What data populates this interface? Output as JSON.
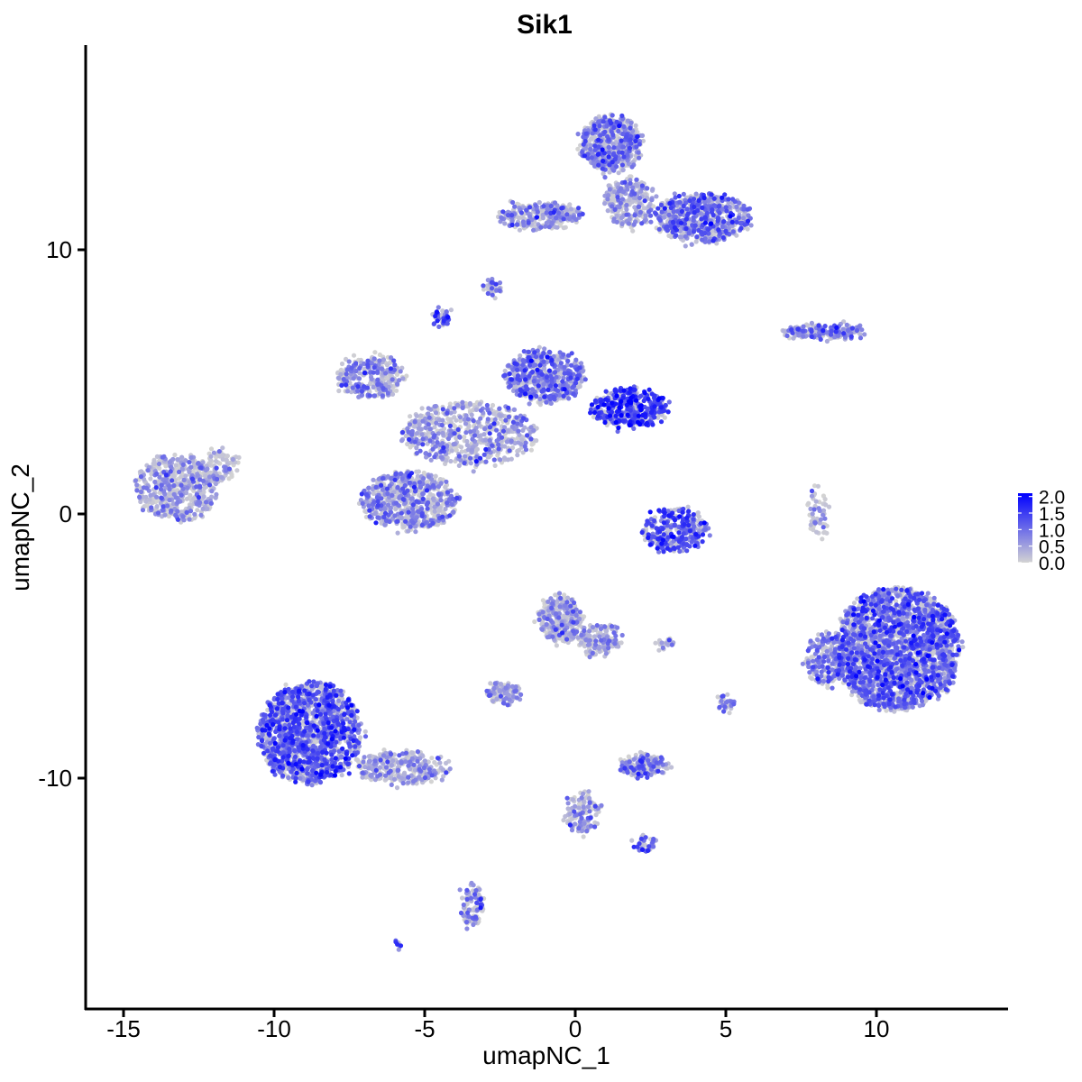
{
  "chart_data": {
    "type": "scatter",
    "title": "Sik1",
    "xlabel": "umapNC_1",
    "ylabel": "umapNC_2",
    "xlim": [
      -16.5,
      14.5
    ],
    "ylim": [
      -17.5,
      17.5
    ],
    "xticks": [
      -15,
      -10,
      -5,
      0,
      5,
      10
    ],
    "xtick_labels": [
      "-15",
      "-10",
      "-5",
      "0",
      "5",
      "10"
    ],
    "yticks": [
      -10,
      0,
      10
    ],
    "ytick_labels": [
      "-10",
      "0",
      "10"
    ],
    "grid": false,
    "legend": {
      "placement": "right",
      "type": "colorbar",
      "range": [
        0,
        2.1
      ],
      "ticks": [
        0.0,
        0.5,
        1.0,
        1.5,
        2.0
      ],
      "tick_labels": [
        "0.0",
        "0.5",
        "1.0",
        "1.5",
        "2.0"
      ],
      "color_low": "#d3d3d3",
      "color_high": "#0000ff"
    },
    "clusters": [
      {
        "name": "left-small",
        "cx": -13.2,
        "cy": 1.0,
        "rx": 1.4,
        "ry": 1.2,
        "n": 520,
        "mean_expr": 0.45
      },
      {
        "name": "left-small-tail",
        "cx": -11.8,
        "cy": 1.8,
        "rx": 0.6,
        "ry": 0.6,
        "n": 90,
        "mean_expr": 0.25
      },
      {
        "name": "center-top-blob",
        "cx": -1.0,
        "cy": 5.2,
        "rx": 1.3,
        "ry": 1.0,
        "n": 520,
        "mean_expr": 0.85
      },
      {
        "name": "center-right-blob",
        "cx": 1.8,
        "cy": 4.0,
        "rx": 1.3,
        "ry": 0.7,
        "n": 420,
        "mean_expr": 1.35
      },
      {
        "name": "center-left-arm",
        "cx": -6.8,
        "cy": 5.2,
        "rx": 1.1,
        "ry": 0.8,
        "n": 300,
        "mean_expr": 0.6
      },
      {
        "name": "center-bottom-blob",
        "cx": -5.5,
        "cy": 0.5,
        "rx": 1.6,
        "ry": 1.1,
        "n": 650,
        "mean_expr": 0.6
      },
      {
        "name": "center-core",
        "cx": -3.5,
        "cy": 3.0,
        "rx": 2.2,
        "ry": 1.2,
        "n": 600,
        "mean_expr": 0.5
      },
      {
        "name": "top-cluster-upper",
        "cx": 1.2,
        "cy": 14.0,
        "rx": 1.0,
        "ry": 1.1,
        "n": 520,
        "mean_expr": 0.7
      },
      {
        "name": "top-cluster-right",
        "cx": 4.2,
        "cy": 11.2,
        "rx": 1.6,
        "ry": 0.9,
        "n": 620,
        "mean_expr": 0.85
      },
      {
        "name": "top-cluster-left-arm",
        "cx": -1.2,
        "cy": 11.3,
        "rx": 1.4,
        "ry": 0.5,
        "n": 280,
        "mean_expr": 0.6
      },
      {
        "name": "top-cluster-neck",
        "cx": 1.8,
        "cy": 11.8,
        "rx": 0.8,
        "ry": 0.9,
        "n": 250,
        "mean_expr": 0.4
      },
      {
        "name": "small-9",
        "cx": -2.7,
        "cy": 8.6,
        "rx": 0.25,
        "ry": 0.3,
        "n": 35,
        "mean_expr": 0.9
      },
      {
        "name": "small-7",
        "cx": -4.5,
        "cy": 7.4,
        "rx": 0.3,
        "ry": 0.25,
        "n": 45,
        "mean_expr": 1.3
      },
      {
        "name": "right-streak",
        "cx": 8.3,
        "cy": 6.9,
        "rx": 1.4,
        "ry": 0.25,
        "n": 180,
        "mean_expr": 0.8
      },
      {
        "name": "horseshoe",
        "cx": 3.3,
        "cy": -0.6,
        "rx": 1.1,
        "ry": 0.8,
        "n": 300,
        "mean_expr": 1.2
      },
      {
        "name": "right-thin",
        "cx": 8.1,
        "cy": 0.0,
        "rx": 0.3,
        "ry": 1.1,
        "n": 55,
        "mean_expr": 0.5
      },
      {
        "name": "big-right",
        "cx": 10.7,
        "cy": -5.1,
        "rx": 2.1,
        "ry": 2.3,
        "n": 2200,
        "mean_expr": 1.0
      },
      {
        "name": "big-right-left-edge",
        "cx": 8.3,
        "cy": -5.5,
        "rx": 0.6,
        "ry": 1.0,
        "n": 180,
        "mean_expr": 0.8
      },
      {
        "name": "lower-left-big",
        "cx": -8.8,
        "cy": -8.3,
        "rx": 1.7,
        "ry": 1.9,
        "n": 1500,
        "mean_expr": 1.1
      },
      {
        "name": "lower-left-tail",
        "cx": -5.8,
        "cy": -9.6,
        "rx": 1.6,
        "ry": 0.6,
        "n": 300,
        "mean_expr": 0.45
      },
      {
        "name": "lower-center-upper",
        "cx": -0.5,
        "cy": -4.0,
        "rx": 0.7,
        "ry": 0.9,
        "n": 300,
        "mean_expr": 0.45
      },
      {
        "name": "lower-center-arm",
        "cx": 0.8,
        "cy": -4.8,
        "rx": 0.7,
        "ry": 0.6,
        "n": 150,
        "mean_expr": 0.4
      },
      {
        "name": "lower-center-bottom",
        "cx": -2.4,
        "cy": -6.8,
        "rx": 0.6,
        "ry": 0.35,
        "n": 120,
        "mean_expr": 0.4
      },
      {
        "name": "small-blob-9",
        "cx": 2.3,
        "cy": -9.5,
        "rx": 0.8,
        "ry": 0.4,
        "n": 150,
        "mean_expr": 0.8
      },
      {
        "name": "small-blob-5",
        "cx": 5.0,
        "cy": -7.2,
        "rx": 0.25,
        "ry": 0.3,
        "n": 30,
        "mean_expr": 0.8
      },
      {
        "name": "small-blob-3",
        "cx": 3.0,
        "cy": -4.9,
        "rx": 0.3,
        "ry": 0.12,
        "n": 22,
        "mean_expr": 0.6
      },
      {
        "name": "branch-bottom",
        "cx": 0.2,
        "cy": -11.3,
        "rx": 0.6,
        "ry": 0.8,
        "n": 120,
        "mean_expr": 0.6
      },
      {
        "name": "branch-bottom-right",
        "cx": 2.3,
        "cy": -12.5,
        "rx": 0.3,
        "ry": 0.3,
        "n": 40,
        "mean_expr": 1.0
      },
      {
        "name": "lower-left-stem",
        "cx": -3.4,
        "cy": -14.8,
        "rx": 0.35,
        "ry": 0.8,
        "n": 90,
        "mean_expr": 0.6
      },
      {
        "name": "tiny-bottom",
        "cx": -5.9,
        "cy": -16.3,
        "rx": 0.12,
        "ry": 0.12,
        "n": 8,
        "mean_expr": 0.9
      }
    ]
  }
}
